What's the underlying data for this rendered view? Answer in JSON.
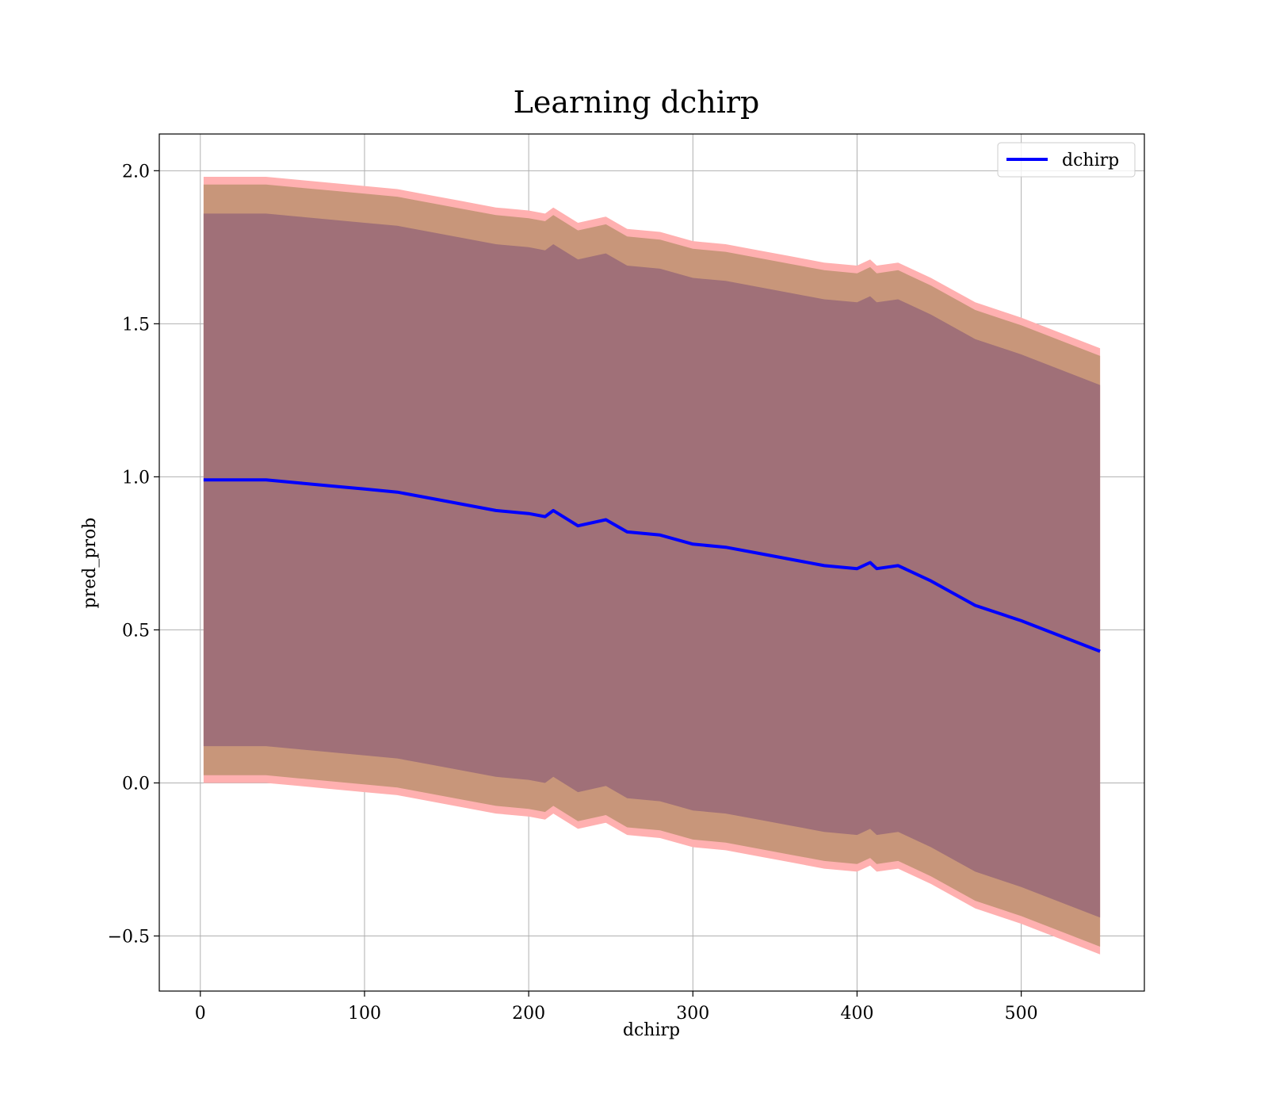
{
  "chart_data": {
    "type": "line",
    "title": "Learning dchirp",
    "xlabel": "dchirp",
    "ylabel": "pred_prob",
    "xlim": [
      -25,
      575
    ],
    "ylim": [
      -0.68,
      2.12
    ],
    "xticks": [
      0,
      100,
      200,
      300,
      400,
      500
    ],
    "yticks": [
      -0.5,
      0.0,
      0.5,
      1.0,
      1.5,
      2.0
    ],
    "xtick_labels": [
      "0",
      "100",
      "200",
      "300",
      "400",
      "500"
    ],
    "ytick_labels": [
      "−0.5",
      "0.0",
      "0.5",
      "1.0",
      "1.5",
      "2.0"
    ],
    "grid": true,
    "legend": {
      "position": "top-right",
      "entries": [
        "dchirp"
      ]
    },
    "colors": {
      "line": "#0000ff",
      "band_outer": "#ffb0b0",
      "band_middle": "#c8967a",
      "band_inner": "#a07078",
      "grid": "#b0b0b0"
    },
    "series": [
      {
        "name": "dchirp",
        "x": [
          2,
          20,
          40,
          60,
          80,
          100,
          120,
          140,
          160,
          180,
          200,
          210,
          215,
          230,
          247,
          260,
          280,
          300,
          320,
          340,
          360,
          380,
          400,
          408,
          412,
          425,
          445,
          472,
          500,
          548
        ],
        "y": [
          0.99,
          0.99,
          0.99,
          0.98,
          0.97,
          0.96,
          0.95,
          0.93,
          0.91,
          0.89,
          0.88,
          0.87,
          0.89,
          0.84,
          0.86,
          0.82,
          0.81,
          0.78,
          0.77,
          0.75,
          0.73,
          0.71,
          0.7,
          0.72,
          0.7,
          0.71,
          0.66,
          0.58,
          0.53,
          0.43
        ]
      }
    ],
    "bands": [
      {
        "level": "outer",
        "lower_offset": [
          0.99,
          0.99,
          0.99,
          0.99,
          0.99,
          0.99,
          0.99,
          0.99,
          0.99,
          0.99,
          0.99,
          0.99,
          0.99,
          0.99,
          0.99,
          0.99,
          0.99,
          0.99,
          0.99,
          0.99,
          0.99,
          0.99,
          0.99,
          0.99,
          0.99,
          0.99,
          0.99,
          0.99,
          0.99,
          0.99
        ],
        "upper_offset": [
          0.99,
          0.99,
          0.99,
          0.99,
          0.99,
          0.99,
          0.99,
          0.99,
          0.99,
          0.99,
          0.99,
          0.99,
          0.99,
          0.99,
          0.99,
          0.99,
          0.99,
          0.99,
          0.99,
          0.99,
          0.99,
          0.99,
          0.99,
          0.99,
          0.99,
          0.99,
          0.99,
          0.99,
          0.99,
          0.99
        ]
      },
      {
        "level": "middle",
        "lower_offset": [
          0.965,
          0.965,
          0.965,
          0.965,
          0.965,
          0.965,
          0.965,
          0.965,
          0.965,
          0.965,
          0.965,
          0.965,
          0.965,
          0.965,
          0.965,
          0.965,
          0.965,
          0.965,
          0.965,
          0.965,
          0.965,
          0.965,
          0.965,
          0.965,
          0.965,
          0.965,
          0.965,
          0.965,
          0.965,
          0.965
        ],
        "upper_offset": [
          0.965,
          0.965,
          0.965,
          0.965,
          0.965,
          0.965,
          0.965,
          0.965,
          0.965,
          0.965,
          0.965,
          0.965,
          0.965,
          0.965,
          0.965,
          0.965,
          0.965,
          0.965,
          0.965,
          0.965,
          0.965,
          0.965,
          0.965,
          0.965,
          0.965,
          0.965,
          0.965,
          0.965,
          0.965,
          0.965
        ]
      },
      {
        "level": "inner",
        "lower_offset": [
          0.87,
          0.87,
          0.87,
          0.87,
          0.87,
          0.87,
          0.87,
          0.87,
          0.87,
          0.87,
          0.87,
          0.87,
          0.87,
          0.87,
          0.87,
          0.87,
          0.87,
          0.87,
          0.87,
          0.87,
          0.87,
          0.87,
          0.87,
          0.87,
          0.87,
          0.87,
          0.87,
          0.87,
          0.87,
          0.87
        ],
        "upper_offset": [
          0.87,
          0.87,
          0.87,
          0.87,
          0.87,
          0.87,
          0.87,
          0.87,
          0.87,
          0.87,
          0.87,
          0.87,
          0.87,
          0.87,
          0.87,
          0.87,
          0.87,
          0.87,
          0.87,
          0.87,
          0.87,
          0.87,
          0.87,
          0.87,
          0.87,
          0.87,
          0.87,
          0.87,
          0.87,
          0.87
        ]
      }
    ]
  }
}
